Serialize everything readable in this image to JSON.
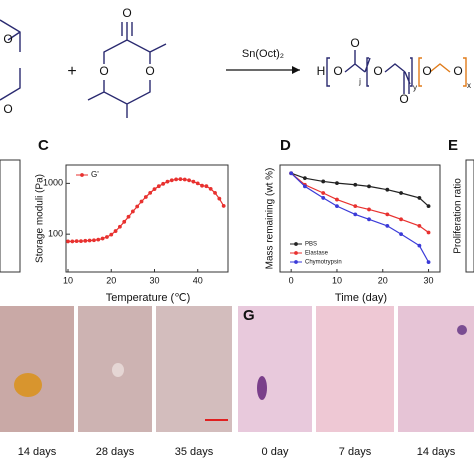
{
  "scheme": {
    "plus": "+",
    "catalyst": "Sn(Oct)₂",
    "atoms": [
      "O",
      "O",
      "O",
      "O",
      "O",
      "H",
      "O",
      "O",
      "O",
      "O",
      "O",
      "O",
      "j",
      "y",
      "x"
    ]
  },
  "chart_data": [
    {
      "type": "line",
      "panel": "C",
      "x_label": "Temperature (℃)",
      "y_label": "Storage moduli (Pa)",
      "x": [
        10,
        11,
        12,
        13,
        14,
        15,
        16,
        17,
        18,
        19,
        20,
        21,
        22,
        23,
        24,
        25,
        26,
        27,
        28,
        29,
        30,
        31,
        32,
        33,
        34,
        35,
        36,
        37,
        38,
        39,
        40,
        41,
        42,
        43,
        44,
        45,
        46
      ],
      "series": [
        {
          "name": "G'",
          "color": "#e8312f",
          "values": [
            72,
            72,
            73,
            73,
            74,
            75,
            76,
            78,
            82,
            88,
            98,
            115,
            140,
            175,
            220,
            280,
            350,
            440,
            540,
            650,
            770,
            880,
            980,
            1080,
            1150,
            1200,
            1210,
            1190,
            1150,
            1080,
            1000,
            900,
            880,
            780,
            650,
            500,
            360
          ]
        }
      ],
      "xlim": [
        10,
        47
      ],
      "ylim": [
        18,
        2300
      ],
      "xticks": [
        10,
        20,
        30,
        40
      ],
      "yticks": [
        100,
        1000
      ],
      "log_y": true,
      "legend": "upper left"
    },
    {
      "type": "line",
      "panel": "D",
      "x_label": "Time (day)",
      "y_label": "Mass remaining (wt %)",
      "x": [
        0,
        3,
        7,
        10,
        14,
        17,
        21,
        24,
        28,
        30
      ],
      "series": [
        {
          "name": "PBS",
          "color": "#222222",
          "values": [
            100,
            97,
            95,
            94,
            93,
            92,
            90,
            88,
            85,
            80
          ]
        },
        {
          "name": "Elastase",
          "color": "#e8312f",
          "values": [
            100,
            93,
            88,
            84,
            80,
            78,
            75,
            72,
            68,
            64
          ]
        },
        {
          "name": "Chymotrypsin",
          "color": "#3a3ad8",
          "values": [
            100,
            92,
            85,
            80,
            75,
            72,
            68,
            63,
            56,
            46
          ]
        }
      ],
      "xlim": [
        -2,
        32.5
      ],
      "ylim": [
        40,
        105
      ],
      "xticks": [
        0,
        10,
        20,
        30
      ],
      "log_y": false,
      "legend": "lower left"
    }
  ],
  "panel_e": {
    "panel": "E",
    "y_label": "Proliferation ratio"
  },
  "photos": {
    "panel": "G",
    "labels": [
      "14 days",
      "28 days",
      "35 days",
      "0 day",
      "7 days",
      "14 days"
    ]
  }
}
